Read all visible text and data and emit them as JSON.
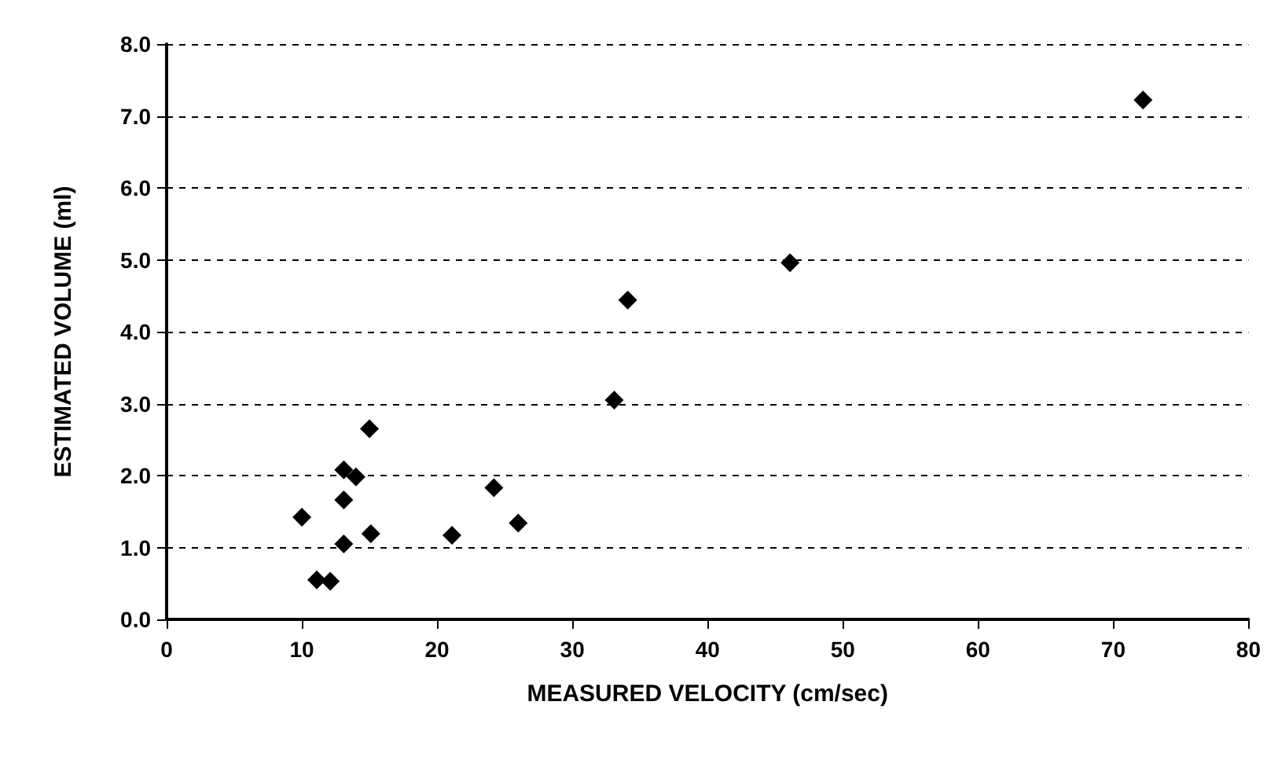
{
  "chart_data": {
    "type": "scatter",
    "xlabel": "MEASURED VELOCITY (cm/sec)",
    "ylabel": "ESTIMATED VOLUME (ml)",
    "x": [
      10.0,
      11.1,
      12.1,
      13.1,
      14.0,
      13.1,
      13.1,
      15.0,
      15.1,
      21.1,
      24.2,
      26.0,
      33.1,
      34.1,
      46.1,
      72.2
    ],
    "values": [
      1.42,
      0.55,
      0.53,
      2.08,
      1.98,
      1.66,
      1.05,
      2.65,
      1.19,
      1.17,
      1.83,
      1.34,
      3.05,
      4.44,
      4.96,
      7.22
    ],
    "color": "#000000",
    "marker": "diamond",
    "grid": "y",
    "xlim": [
      0,
      80
    ],
    "xticks": [
      0,
      10,
      20,
      30,
      40,
      50,
      60,
      70,
      80
    ],
    "ylim": [
      0,
      8
    ],
    "yticks": [
      {
        "value": 0,
        "label": "0.0"
      },
      {
        "value": 1,
        "label": "1.0"
      },
      {
        "value": 2,
        "label": "2.0"
      },
      {
        "value": 3,
        "label": "3.0"
      },
      {
        "value": 4,
        "label": "4.0"
      },
      {
        "value": 5,
        "label": "5.0"
      },
      {
        "value": 6,
        "label": "6.0"
      },
      {
        "value": 7,
        "label": "7.0"
      },
      {
        "value": 8,
        "label": "8.0"
      }
    ]
  }
}
